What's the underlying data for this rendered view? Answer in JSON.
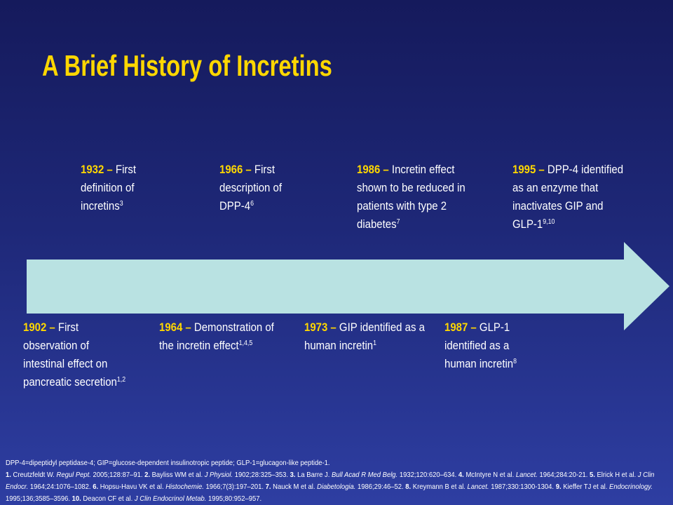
{
  "title": "A Brief History of Incretins",
  "events_top": [
    {
      "year": "1932 –",
      "text": "First definition of incretins",
      "sup": "3"
    },
    {
      "year": "1966 –",
      "text": "First description of DPP-4",
      "sup": "6"
    },
    {
      "year": "1986 –",
      "text": "Incretin effect shown to be reduced in patients with type 2 diabetes",
      "sup": "7"
    },
    {
      "year": "1995 –",
      "text": "DPP-4 identified as an enzyme that inactivates GIP and GLP-1",
      "sup": "9,10"
    }
  ],
  "events_bottom": [
    {
      "year": "1902 –",
      "text": "First observation of intestinal effect on pancreatic secretion",
      "sup": "1,2"
    },
    {
      "year": "1964 –",
      "text": "Demonstration of the incretin effect",
      "sup": "1,4,5"
    },
    {
      "year": "1973 –",
      "text": "GIP identified as a human incretin",
      "sup": "1"
    },
    {
      "year": "1987 –",
      "text": "GLP-1 identified as a human incretin",
      "sup": "8"
    }
  ],
  "abbreviations": "DPP-4=dipeptidyl peptidase-4; GIP=glucose-dependent insulinotropic peptide; GLP-1=glucagon-like peptide-1.",
  "references": [
    {
      "num": "1.",
      "authors": "Creutzfeldt W.",
      "journal": "Regul Pept.",
      "rest": "2005;128:87–91."
    },
    {
      "num": "2.",
      "authors": "Bayliss WM et al.",
      "journal": "J Physiol.",
      "rest": "1902;28:325–353."
    },
    {
      "num": "3.",
      "authors": "La Barre J.",
      "journal": "Bull Acad R Med Belg.",
      "rest": "1932;120:620–634."
    },
    {
      "num": "4.",
      "authors": "McIntyre N et al.",
      "journal": "Lancet.",
      "rest": "1964;284:20-21."
    },
    {
      "num": "5.",
      "authors": "Elrick H et al.",
      "journal": "J Clin Endocr.",
      "rest": "1964;24:1076–1082."
    },
    {
      "num": "6.",
      "authors": "Hopsu-Havu VK et al.",
      "journal": "Histochemie.",
      "rest": "1966;7(3):197–201."
    },
    {
      "num": "7.",
      "authors": "Nauck M et al.",
      "journal": "Diabetologia.",
      "rest": "1986;29:46–52."
    },
    {
      "num": "8.",
      "authors": "Kreymann B et al.",
      "journal": "Lancet.",
      "rest": "1987;330:1300-1304."
    },
    {
      "num": "9.",
      "authors": "Kieffer TJ et al.",
      "journal": "Endocrinology.",
      "rest": "1995;136;3585–3596."
    },
    {
      "num": "10.",
      "authors": "Deacon CF et al.",
      "journal": "J Clin Endocrinol Metab.",
      "rest": "1995;80:952–957."
    }
  ]
}
